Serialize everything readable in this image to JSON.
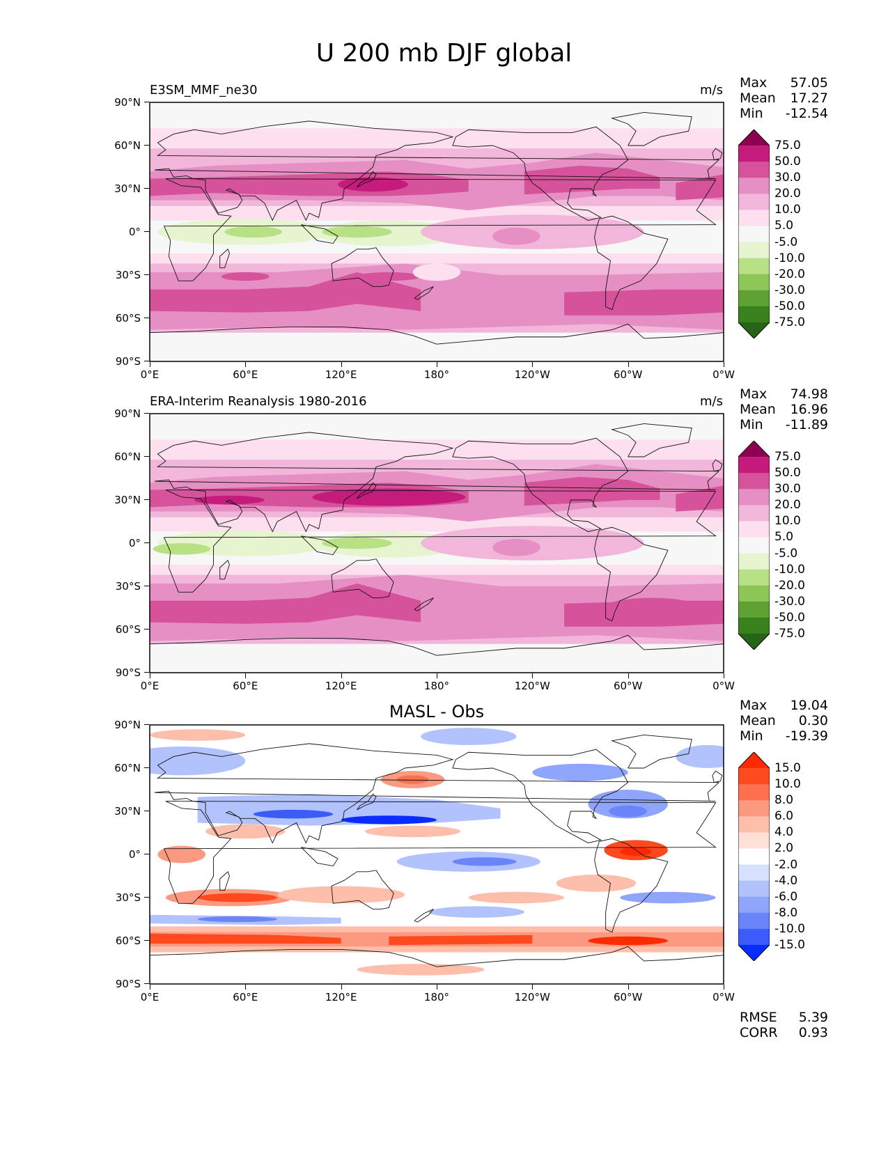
{
  "figure": {
    "title": "U 200 mb DJF global",
    "lon_ticks": [
      "0°E",
      "60°E",
      "120°E",
      "180°",
      "120°W",
      "60°W",
      "0°W"
    ],
    "lat_ticks": [
      "90°N",
      "60°N",
      "30°N",
      "0°",
      "30°S",
      "60°S",
      "90°S"
    ],
    "bottom_stats": {
      "rmse_label": "RMSE",
      "rmse_value": "5.39",
      "corr_label": "CORR",
      "corr_value": "0.93"
    }
  },
  "panels": [
    {
      "title": "E3SM_MMF_ne30",
      "units": "m/s",
      "stats": {
        "max_label": "Max",
        "max": "57.05",
        "mean_label": "Mean",
        "mean": "17.27",
        "min_label": "Min",
        "min": "-12.54"
      },
      "colorbar": {
        "labels": [
          "75.0",
          "50.0",
          "30.0",
          "20.0",
          "10.0",
          "5.0",
          "-5.0",
          "-10.0",
          "-20.0",
          "-30.0",
          "-50.0",
          "-75.0"
        ],
        "colors": [
          "#8e0152",
          "#c51b7d",
          "#d6539b",
          "#e58fc4",
          "#f1b6da",
          "#fde0ef",
          "#f7f7f7",
          "#e6f5d0",
          "#b8e186",
          "#8cc656",
          "#5fa233",
          "#39801e",
          "#276419"
        ]
      }
    },
    {
      "title": "ERA-Interim Reanalysis 1980-2016",
      "units": "m/s",
      "stats": {
        "max_label": "Max",
        "max": "74.98",
        "mean_label": "Mean",
        "mean": "16.96",
        "min_label": "Min",
        "min": "-11.89"
      },
      "colorbar": {
        "labels": [
          "75.0",
          "50.0",
          "30.0",
          "20.0",
          "10.0",
          "5.0",
          "-5.0",
          "-10.0",
          "-20.0",
          "-30.0",
          "-50.0",
          "-75.0"
        ],
        "colors": [
          "#8e0152",
          "#c51b7d",
          "#d6539b",
          "#e58fc4",
          "#f1b6da",
          "#fde0ef",
          "#f7f7f7",
          "#e6f5d0",
          "#b8e186",
          "#8cc656",
          "#5fa233",
          "#39801e",
          "#276419"
        ]
      }
    },
    {
      "title": "MASL - Obs",
      "units": "",
      "stats": {
        "max_label": "Max",
        "max": "19.04",
        "mean_label": "Mean",
        "mean": "0.30",
        "min_label": "Min",
        "min": "-19.39"
      },
      "colorbar": {
        "labels": [
          "15.0",
          "10.0",
          "8.0",
          "6.0",
          "4.0",
          "2.0",
          "-2.0",
          "-4.0",
          "-6.0",
          "-8.0",
          "-10.0",
          "-15.0"
        ],
        "colors": [
          "#ff2a00",
          "#ff4a20",
          "#fc7050",
          "#fb9a80",
          "#fdbfac",
          "#fee0d6",
          "#ffffff",
          "#d6e0ff",
          "#b2c2fd",
          "#8fa4fb",
          "#6a84fa",
          "#3b5bfa",
          "#0a2cff"
        ]
      }
    }
  ],
  "chart_data": {
    "type": "heatmap",
    "title": "U 200 mb DJF global",
    "x_axis": {
      "quantity": "longitude",
      "range": [
        "0°E",
        "0°W"
      ]
    },
    "y_axis": {
      "quantity": "latitude",
      "range": [
        "90°S",
        "90°N"
      ]
    },
    "approx_zonal_mean_profiles": {
      "latitude": [
        -80,
        -60,
        -50,
        -40,
        -30,
        -20,
        -10,
        0,
        10,
        20,
        30,
        40,
        50,
        60,
        80
      ],
      "E3SM_MMF_ne30": [
        2,
        25,
        35,
        30,
        22,
        12,
        5,
        -2,
        6,
        25,
        40,
        32,
        22,
        14,
        6
      ],
      "ERA-Interim": [
        2,
        22,
        30,
        28,
        20,
        10,
        4,
        -3,
        5,
        25,
        45,
        35,
        20,
        12,
        5
      ],
      "MASL - Obs": [
        4,
        9,
        6,
        -4,
        6,
        3,
        0,
        1,
        1,
        -3,
        -8,
        -3,
        3,
        2,
        -1
      ]
    }
  }
}
